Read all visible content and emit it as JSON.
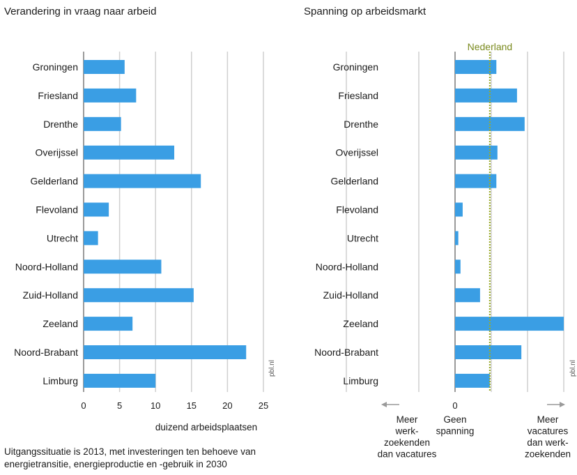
{
  "chart_data": [
    {
      "type": "bar",
      "title": "Verandering in vraag naar arbeid",
      "xlabel": "duizend arbeidsplaatsen",
      "xlim": [
        0,
        25
      ],
      "ticks": [
        "0",
        "5",
        "10",
        "15",
        "20",
        "25"
      ],
      "categories": [
        "Groningen",
        "Friesland",
        "Drenthe",
        "Overijssel",
        "Gelderland",
        "Flevoland",
        "Utrecht",
        "Noord-Holland",
        "Zuid-Holland",
        "Zeeland",
        "Noord-Brabant",
        "Limburg"
      ],
      "values": [
        5.7,
        7.3,
        5.2,
        12.6,
        16.3,
        3.5,
        2.0,
        10.8,
        15.3,
        6.8,
        22.6,
        10.0
      ],
      "source_tag": "pbl.nl",
      "color": "#3a9ee4"
    },
    {
      "type": "bar",
      "title": "Spanning op arbeidsmarkt",
      "reference_label": "Nederland",
      "zero_label": "0",
      "categories": [
        "Groningen",
        "Friesland",
        "Drenthe",
        "Overijssel",
        "Gelderland",
        "Flevoland",
        "Utrecht",
        "Noord-Holland",
        "Zuid-Holland",
        "Zeeland",
        "Noord-Brabant",
        "Limburg"
      ],
      "values": [
        0.38,
        0.57,
        0.64,
        0.39,
        0.38,
        0.07,
        0.03,
        0.05,
        0.23,
        1.0,
        0.61,
        0.32
      ],
      "reference_value": 0.32,
      "xlim": [
        -1.0,
        1.0
      ],
      "axis_captions": {
        "left": [
          "Meer",
          "werk-",
          "zoekenden",
          "dan vacatures"
        ],
        "center": [
          "Geen",
          "spanning"
        ],
        "right": [
          "Meer",
          "vacatures",
          "dan werk-",
          "zoekenden"
        ]
      },
      "source_tag": "pbl.nl",
      "color": "#3a9ee4",
      "reference_color": "#9aaa2a"
    }
  ],
  "footnote": [
    "Uitgangssituatie is 2013, met investeringen ten behoeve van",
    "energietransitie, energieproductie en -gebruik in 2030"
  ]
}
